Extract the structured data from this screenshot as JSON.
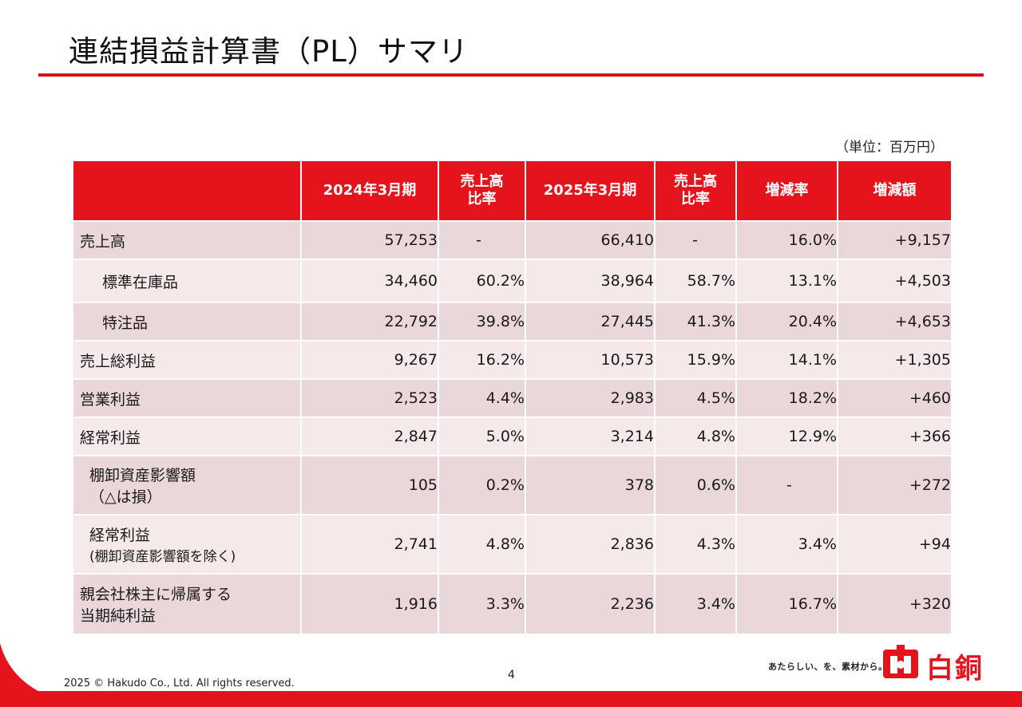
{
  "title": "連結損益計算書（PL）サマリ",
  "unit": "（単位：百万円）",
  "headers": {
    "fy2024": "2024年3月期",
    "ratio1_l1": "売上高",
    "ratio1_l2": "比率",
    "fy2025": "2025年3月期",
    "ratio2_l1": "売上高",
    "ratio2_l2": "比率",
    "change_rate": "増減率",
    "change_amount": "増減額"
  },
  "rows": [
    {
      "label": "売上高",
      "fy2024": "57,253",
      "ratio2024": "-",
      "fy2025": "66,410",
      "ratio2025": "-",
      "rate": "16.0%",
      "amount": "+9,157"
    },
    {
      "label": "標準在庫品",
      "fy2024": "34,460",
      "ratio2024": "60.2%",
      "fy2025": "38,964",
      "ratio2025": "58.7%",
      "rate": "13.1%",
      "amount": "+4,503"
    },
    {
      "label": "特注品",
      "fy2024": "22,792",
      "ratio2024": "39.8%",
      "fy2025": "27,445",
      "ratio2025": "41.3%",
      "rate": "20.4%",
      "amount": "+4,653"
    },
    {
      "label": "売上総利益",
      "fy2024": "9,267",
      "ratio2024": "16.2%",
      "fy2025": "10,573",
      "ratio2025": "15.9%",
      "rate": "14.1%",
      "amount": "+1,305"
    },
    {
      "label": "営業利益",
      "fy2024": "2,523",
      "ratio2024": "4.4%",
      "fy2025": "2,983",
      "ratio2025": "4.5%",
      "rate": "18.2%",
      "amount": "+460"
    },
    {
      "label": "経常利益",
      "fy2024": "2,847",
      "ratio2024": "5.0%",
      "fy2025": "3,214",
      "ratio2025": "4.8%",
      "rate": "12.9%",
      "amount": "+366"
    },
    {
      "label": "棚卸資産影響額",
      "label2": "（△は損）",
      "fy2024": "105",
      "ratio2024": "0.2%",
      "fy2025": "378",
      "ratio2025": "0.6%",
      "rate": "-",
      "amount": "+272"
    },
    {
      "label": "経常利益",
      "label2": "(棚卸資産影響額を除く)",
      "fy2024": "2,741",
      "ratio2024": "4.8%",
      "fy2025": "2,836",
      "ratio2025": "4.3%",
      "rate": "3.4%",
      "amount": "+94"
    },
    {
      "label": "親会社株主に帰属する",
      "label2": "当期純利益",
      "fy2024": "1,916",
      "ratio2024": "3.3%",
      "fy2025": "2,236",
      "ratio2025": "3.4%",
      "rate": "16.7%",
      "amount": "+320"
    }
  ],
  "footer": {
    "page_number": "4",
    "copyright": "2025 © Hakudo Co., Ltd. All rights reserved.",
    "tagline": "あたらしい、を、素材から。",
    "logo_text": "白銅"
  },
  "colors": {
    "accent": "#e5141c",
    "row_dark": "#ead7da",
    "row_light": "#f5e9ea"
  }
}
